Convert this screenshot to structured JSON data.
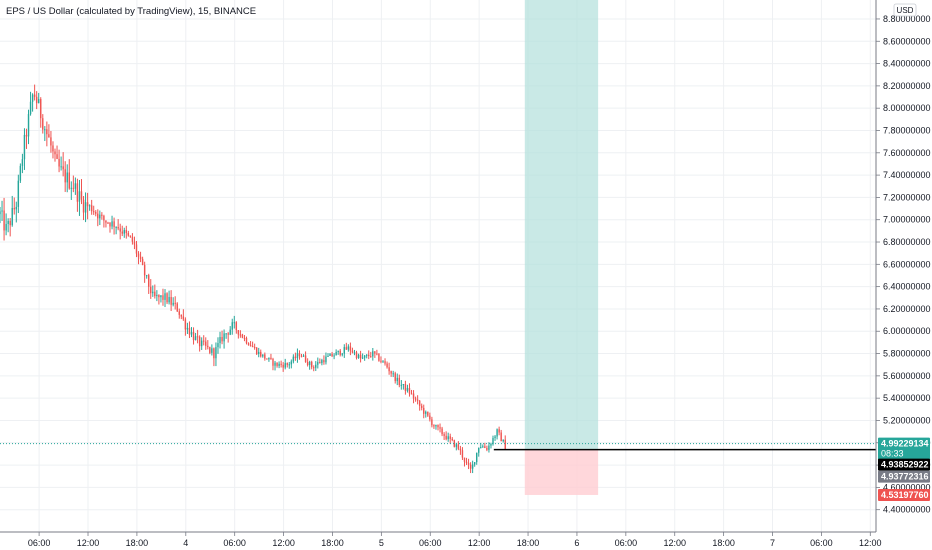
{
  "chart_data": {
    "type": "candlestick",
    "title": "EPS / US Dollar (calculated by TradingView), 15, BINANCE",
    "currency_badge": "USD",
    "ylim": [
      4.2,
      8.97
    ],
    "y_ticks": [
      "8.80000000",
      "8.60000000",
      "8.40000000",
      "8.20000000",
      "8.00000000",
      "7.80000000",
      "7.60000000",
      "7.40000000",
      "7.20000000",
      "7.00000000",
      "6.80000000",
      "6.60000000",
      "6.40000000",
      "6.20000000",
      "6.00000000",
      "5.80000000",
      "5.60000000",
      "5.40000000",
      "5.20000000",
      "5.00000000",
      "4.80000000",
      "4.60000000",
      "4.40000000"
    ],
    "y_tick_values": [
      8.8,
      8.6,
      8.4,
      8.2,
      8.0,
      7.8,
      7.6,
      7.4,
      7.2,
      7.0,
      6.8,
      6.6,
      6.4,
      6.2,
      6.0,
      5.8,
      5.6,
      5.4,
      5.2,
      5.0,
      4.8,
      4.6,
      4.4
    ],
    "x_ticks": [
      "06:00",
      "12:00",
      "18:00",
      "4",
      "06:00",
      "12:00",
      "18:00",
      "5",
      "06:00",
      "12:00",
      "18:00",
      "6",
      "06:00",
      "12:00",
      "18:00",
      "7",
      "06:00",
      "12:00"
    ],
    "x_hours": [
      6,
      12,
      18,
      24,
      30,
      36,
      42,
      48,
      54,
      60,
      66,
      72,
      78,
      84,
      90,
      96,
      102,
      108
    ],
    "xlim": [
      1.2,
      108.7
    ],
    "grid": true,
    "colors": {
      "up": "#26a69a",
      "down": "#ef5350",
      "profit_zone": "#b2dfdb",
      "loss_zone": "#ffcdd2",
      "entry_line": "#000000",
      "grid": "#eef0f3"
    },
    "price_path": [
      [
        1.2,
        7.05
      ],
      [
        2.0,
        6.9
      ],
      [
        3.2,
        7.15
      ],
      [
        4.0,
        7.6
      ],
      [
        5.3,
        8.15
      ],
      [
        6.0,
        8.0
      ],
      [
        6.8,
        7.8
      ],
      [
        7.3,
        7.7
      ],
      [
        8.0,
        7.5
      ],
      [
        9.0,
        7.4
      ],
      [
        10.3,
        7.3
      ],
      [
        11.3,
        7.15
      ],
      [
        12.5,
        7.1
      ],
      [
        13.8,
        7.0
      ],
      [
        15.5,
        6.95
      ],
      [
        17.5,
        6.8
      ],
      [
        18.5,
        6.6
      ],
      [
        20.0,
        6.3
      ],
      [
        21.5,
        6.3
      ],
      [
        23.0,
        6.2
      ],
      [
        24.0,
        6.05
      ],
      [
        25.5,
        5.9
      ],
      [
        27.5,
        5.8
      ],
      [
        28.5,
        5.95
      ],
      [
        29.8,
        6.05
      ],
      [
        31.0,
        5.95
      ],
      [
        33.0,
        5.8
      ],
      [
        35.0,
        5.7
      ],
      [
        36.5,
        5.7
      ],
      [
        38.0,
        5.8
      ],
      [
        39.5,
        5.68
      ],
      [
        41.0,
        5.75
      ],
      [
        42.5,
        5.8
      ],
      [
        44.0,
        5.85
      ],
      [
        45.5,
        5.75
      ],
      [
        47.0,
        5.8
      ],
      [
        48.5,
        5.7
      ],
      [
        50.0,
        5.55
      ],
      [
        51.5,
        5.45
      ],
      [
        53.0,
        5.3
      ],
      [
        54.5,
        5.15
      ],
      [
        56.0,
        5.05
      ],
      [
        57.5,
        4.95
      ],
      [
        58.5,
        4.8
      ],
      [
        59.0,
        4.75
      ],
      [
        60.0,
        4.98
      ],
      [
        61.0,
        4.95
      ],
      [
        62.2,
        5.1
      ],
      [
        63.3,
        4.96
      ]
    ],
    "position": {
      "x_start": 65.6,
      "x_end": 74.6,
      "entry": 4.93852922,
      "target": 8.97,
      "stop": 4.5319776
    },
    "price_labels": [
      {
        "value": 4.99229134,
        "text": "4.99229134",
        "bg": "#26a69a",
        "fg": "#ffffff"
      },
      {
        "value": 4.93852922,
        "text": "4.93852922",
        "bg": "#000000",
        "fg": "#ffffff"
      },
      {
        "value": 4.93772316,
        "text": "4.93772316",
        "bg": "#787b86",
        "fg": "#ffffff"
      },
      {
        "value": 4.5319776,
        "text": "4.53197760",
        "bg": "#ef5350",
        "fg": "#ffffff"
      }
    ],
    "countdown": "08:33"
  }
}
